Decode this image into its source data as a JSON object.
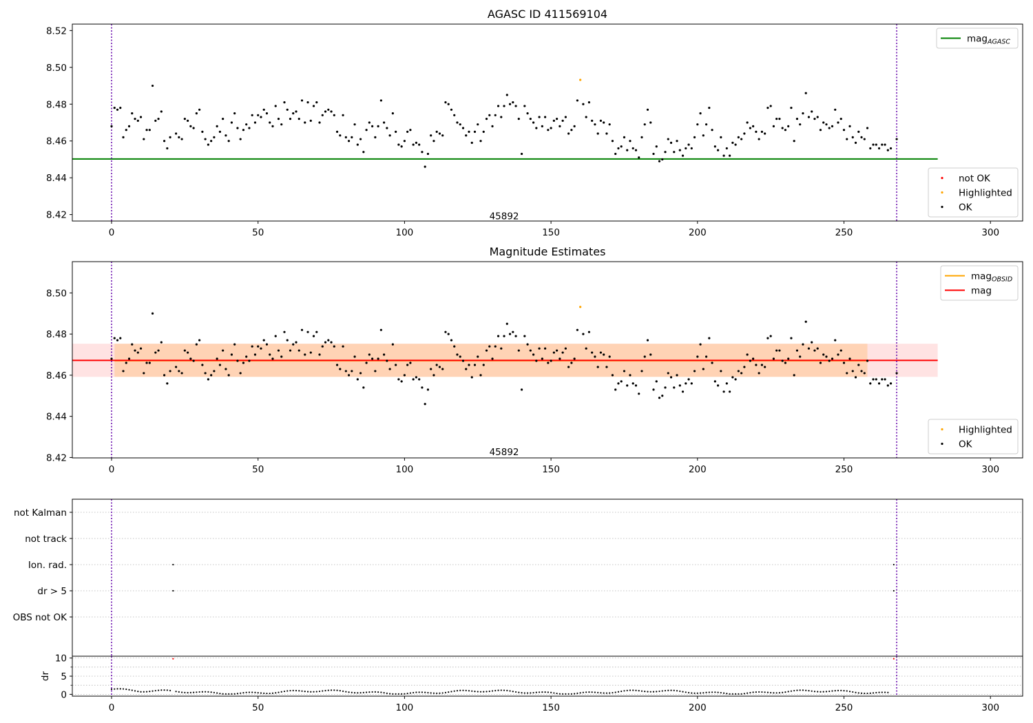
{
  "chart_data": [
    {
      "type": "scatter",
      "title": "AGASC ID 411569104",
      "xlabel": "",
      "ylabel": "",
      "xlim": [
        -13.4,
        311
      ],
      "ylim": [
        8.4165,
        8.5235
      ],
      "xticks": [
        0,
        50,
        100,
        150,
        200,
        250,
        300
      ],
      "yticks": [
        8.42,
        8.44,
        8.46,
        8.48,
        8.5,
        8.52
      ],
      "ytick_decimals": 2,
      "grid": false,
      "vlines": [
        0,
        268
      ],
      "vline_color": "#6a0dad",
      "annotation": {
        "text": "45892",
        "x": 134,
        "y": 8.4175
      },
      "hlines": [
        {
          "name": "mag_AGASC",
          "value": 8.4502,
          "x_range": [
            -13.4,
            282
          ],
          "color": "#008000"
        }
      ],
      "legends": [
        {
          "position": "top-right",
          "entries": [
            {
              "label": "mag",
              "sub": "AGASC",
              "kind": "line",
              "color": "#008000"
            }
          ]
        },
        {
          "position": "bottom-right",
          "entries": [
            {
              "label": "not OK",
              "kind": "dot",
              "color": "#ff0000"
            },
            {
              "label": "Highlighted",
              "kind": "dot",
              "color": "#ffa500"
            },
            {
              "label": "OK",
              "kind": "dot",
              "color": "#000000"
            }
          ]
        }
      ],
      "series": [
        {
          "name": "OK",
          "color": "#000000",
          "x": [],
          "y": []
        },
        {
          "name": "Highlighted",
          "color": "#ffa500",
          "x": [
            160
          ],
          "y": [
            8.4932
          ]
        }
      ]
    },
    {
      "type": "scatter",
      "title": "Magnitude Estimates",
      "xlabel": "",
      "ylabel": "",
      "xlim": [
        -13.4,
        311
      ],
      "ylim": [
        8.4198,
        8.5152
      ],
      "xticks": [
        0,
        50,
        100,
        150,
        200,
        250,
        300
      ],
      "yticks": [
        8.42,
        8.44,
        8.46,
        8.48,
        8.5
      ],
      "ytick_decimals": 2,
      "grid": false,
      "vlines": [
        0,
        268
      ],
      "vline_color": "#6a0dad",
      "annotation": {
        "text": "45892",
        "x": 134,
        "y": 8.4212
      },
      "bands": [
        {
          "name": "mag_OBSID range",
          "y_range": [
            8.4592,
            8.4753
          ],
          "x_range": [
            1,
            258
          ],
          "color": "#ffa500",
          "opacity": 0.2
        },
        {
          "name": "mag range",
          "y_range": [
            8.4592,
            8.4753
          ],
          "x_range": [
            -13.4,
            282
          ],
          "color": "#ff0000",
          "opacity": 0.11
        }
      ],
      "hlines": [
        {
          "name": "mag_OBSID",
          "value": 8.4671,
          "x_range": [
            1,
            258
          ],
          "color": "#ffa500"
        },
        {
          "name": "mag",
          "value": 8.4672,
          "x_range": [
            -13.4,
            282
          ],
          "color": "#ff0000"
        }
      ],
      "legends": [
        {
          "position": "top-right",
          "entries": [
            {
              "label": "mag",
              "sub": "OBSID",
              "kind": "line",
              "color": "#ffa500"
            },
            {
              "label": "mag",
              "sub": "",
              "kind": "line",
              "color": "#ff0000"
            }
          ]
        },
        {
          "position": "bottom-right",
          "entries": [
            {
              "label": "Highlighted",
              "kind": "dot",
              "color": "#ffa500"
            },
            {
              "label": "OK",
              "kind": "dot",
              "color": "#000000"
            }
          ]
        }
      ],
      "series": [
        {
          "name": "OK",
          "color": "#000000",
          "x": [],
          "y": []
        },
        {
          "name": "Highlighted",
          "color": "#ffa500",
          "x": [
            160
          ],
          "y": [
            8.4932
          ]
        }
      ]
    },
    {
      "type": "scatter",
      "title": "",
      "xlabel": "",
      "ylabel": "",
      "xlim": [
        -13.4,
        311
      ],
      "ylim": [
        -0.5,
        5.5
      ],
      "xticks": [],
      "yticks": [
        1,
        2,
        3,
        4,
        5
      ],
      "ytick_labels": [
        "OBS not OK",
        "dr > 5",
        "Ion. rad.",
        "not track",
        "not Kalman"
      ],
      "grid": true,
      "vlines": [
        0,
        268
      ],
      "vline_color": "#6a0dad",
      "series": [
        {
          "name": "dr > 5",
          "color": "#000000",
          "x": [
            21,
            267
          ],
          "y": [
            2,
            2
          ]
        },
        {
          "name": "Ion. rad.",
          "color": "#000000",
          "x": [
            21,
            267
          ],
          "y": [
            3,
            3
          ]
        }
      ]
    },
    {
      "type": "scatter",
      "title": "",
      "xlabel": "",
      "ylabel": "dr",
      "xlim": [
        -13.4,
        311
      ],
      "ylim": [
        -0.5,
        10.5
      ],
      "xticks": [
        0,
        50,
        100,
        150,
        200,
        250,
        300
      ],
      "yticks": [
        0,
        5,
        10
      ],
      "minor_yticks": [
        2.5,
        7.5
      ],
      "grid": true,
      "vlines": [
        0,
        268
      ],
      "vline_color": "#6a0dad",
      "series": [
        {
          "name": "dr",
          "color": "#000000",
          "x": [],
          "y": []
        },
        {
          "name": "dr > 5",
          "color": "#ff0000",
          "x": [
            21,
            267
          ],
          "y": [
            9.8,
            9.8
          ]
        }
      ]
    }
  ]
}
